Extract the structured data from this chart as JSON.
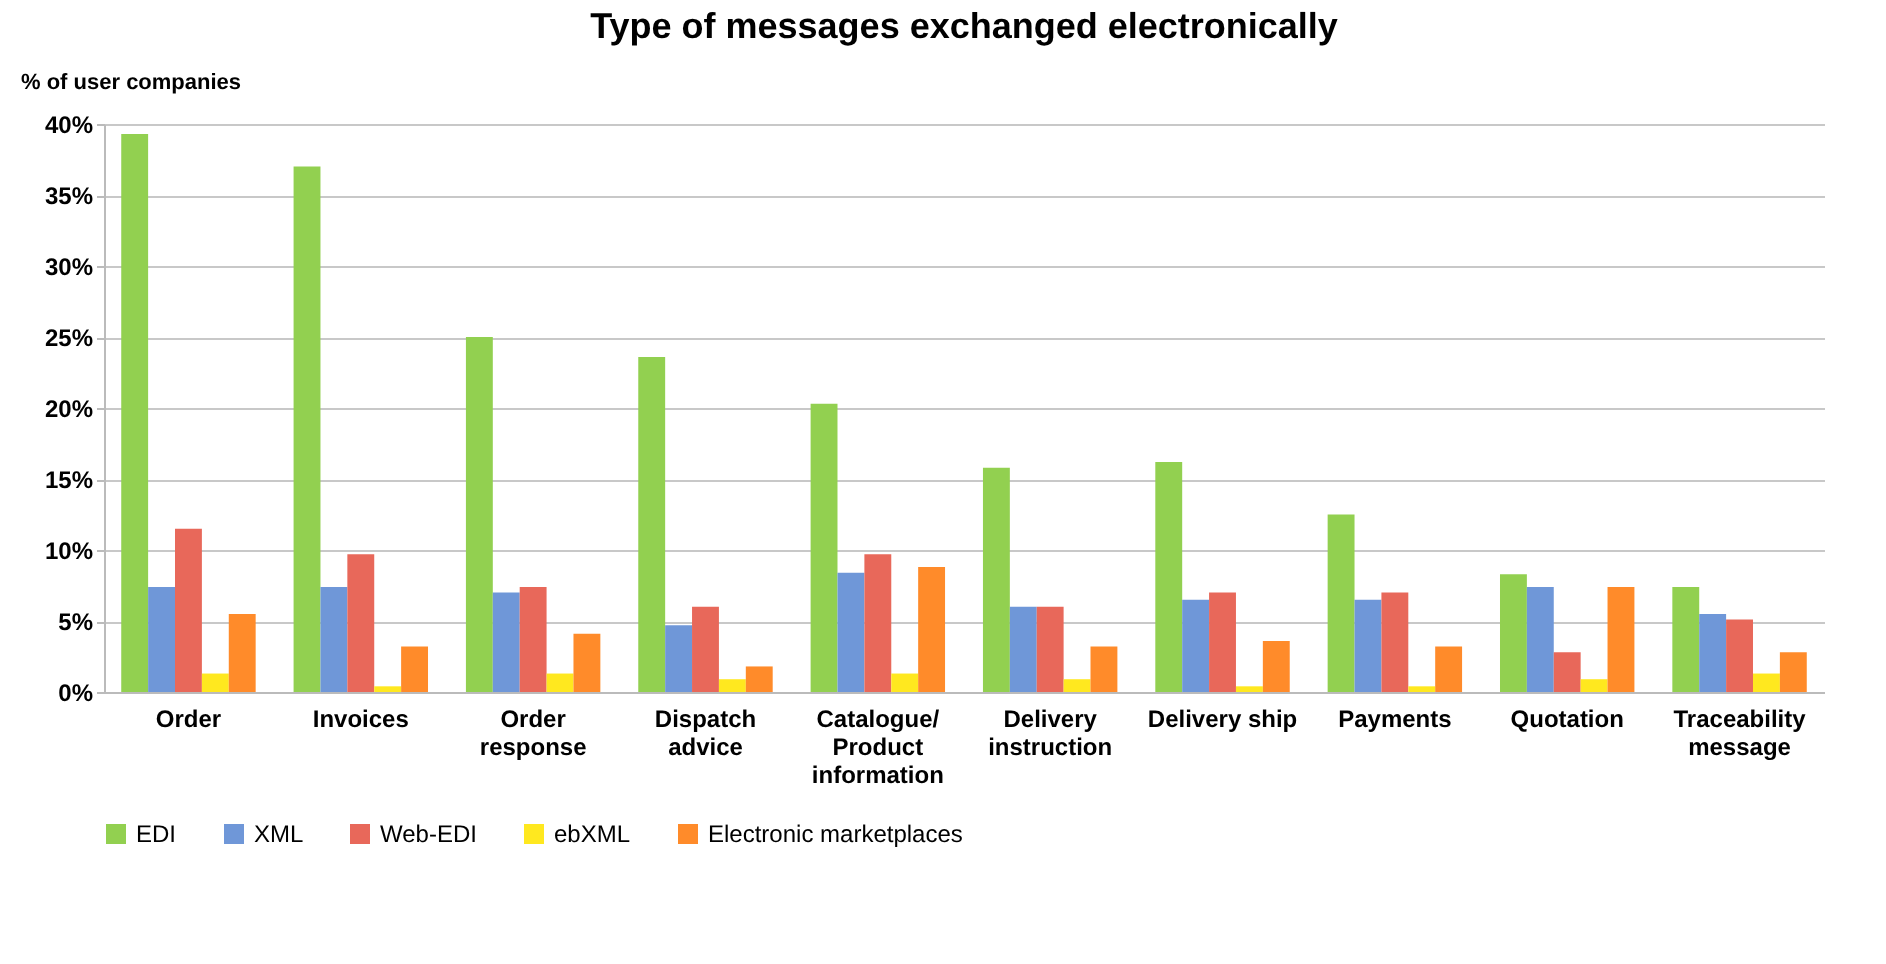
{
  "chart_data": {
    "type": "bar",
    "title": "Type of messages exchanged electronically",
    "ylabel": "% of user companies",
    "categories": [
      "Order",
      "Invoices",
      "Order\nresponse",
      "Dispatch\nadvice",
      "Catalogue/\nProduct\ninformation",
      "Delivery\ninstruction",
      "Delivery ship",
      "Payments",
      "Quotation",
      "Traceability\nmessage"
    ],
    "series": [
      {
        "name": "EDI",
        "color": "#92d050",
        "values": [
          39.3,
          37,
          25,
          23.6,
          20.3,
          15.8,
          16.2,
          12.5,
          8.3,
          7.4
        ]
      },
      {
        "name": "XML",
        "color": "#6f97d8",
        "values": [
          7.4,
          7.4,
          7.0,
          4.7,
          8.4,
          6.0,
          6.5,
          6.5,
          7.4,
          5.5
        ]
      },
      {
        "name": "Web-EDI",
        "color": "#e8685a",
        "values": [
          11.5,
          9.7,
          7.4,
          6.0,
          9.7,
          6.0,
          7.0,
          7.0,
          2.8,
          5.1
        ]
      },
      {
        "name": "ebXML",
        "color": "#ffe81f",
        "values": [
          1.3,
          0.4,
          1.3,
          0.9,
          1.3,
          0.9,
          0.4,
          0.4,
          0.9,
          1.3
        ]
      },
      {
        "name": "Electronic marketplaces",
        "color": "#ff8b2a",
        "values": [
          5.5,
          3.2,
          4.1,
          1.8,
          8.8,
          3.2,
          3.6,
          3.2,
          7.4,
          2.8
        ]
      }
    ],
    "ylim": [
      0,
      40
    ],
    "yticks": [
      {
        "value": 0,
        "label": "0%"
      },
      {
        "value": 5,
        "label": "5%"
      },
      {
        "value": 10,
        "label": "10%"
      },
      {
        "value": 15,
        "label": "15%"
      },
      {
        "value": 20,
        "label": "20%"
      },
      {
        "value": 25,
        "label": "25%"
      },
      {
        "value": 30,
        "label": "30%"
      },
      {
        "value": 35,
        "label": "35%"
      },
      {
        "value": 40,
        "label": "40%"
      }
    ],
    "grid": "y",
    "legend": "bottom"
  }
}
